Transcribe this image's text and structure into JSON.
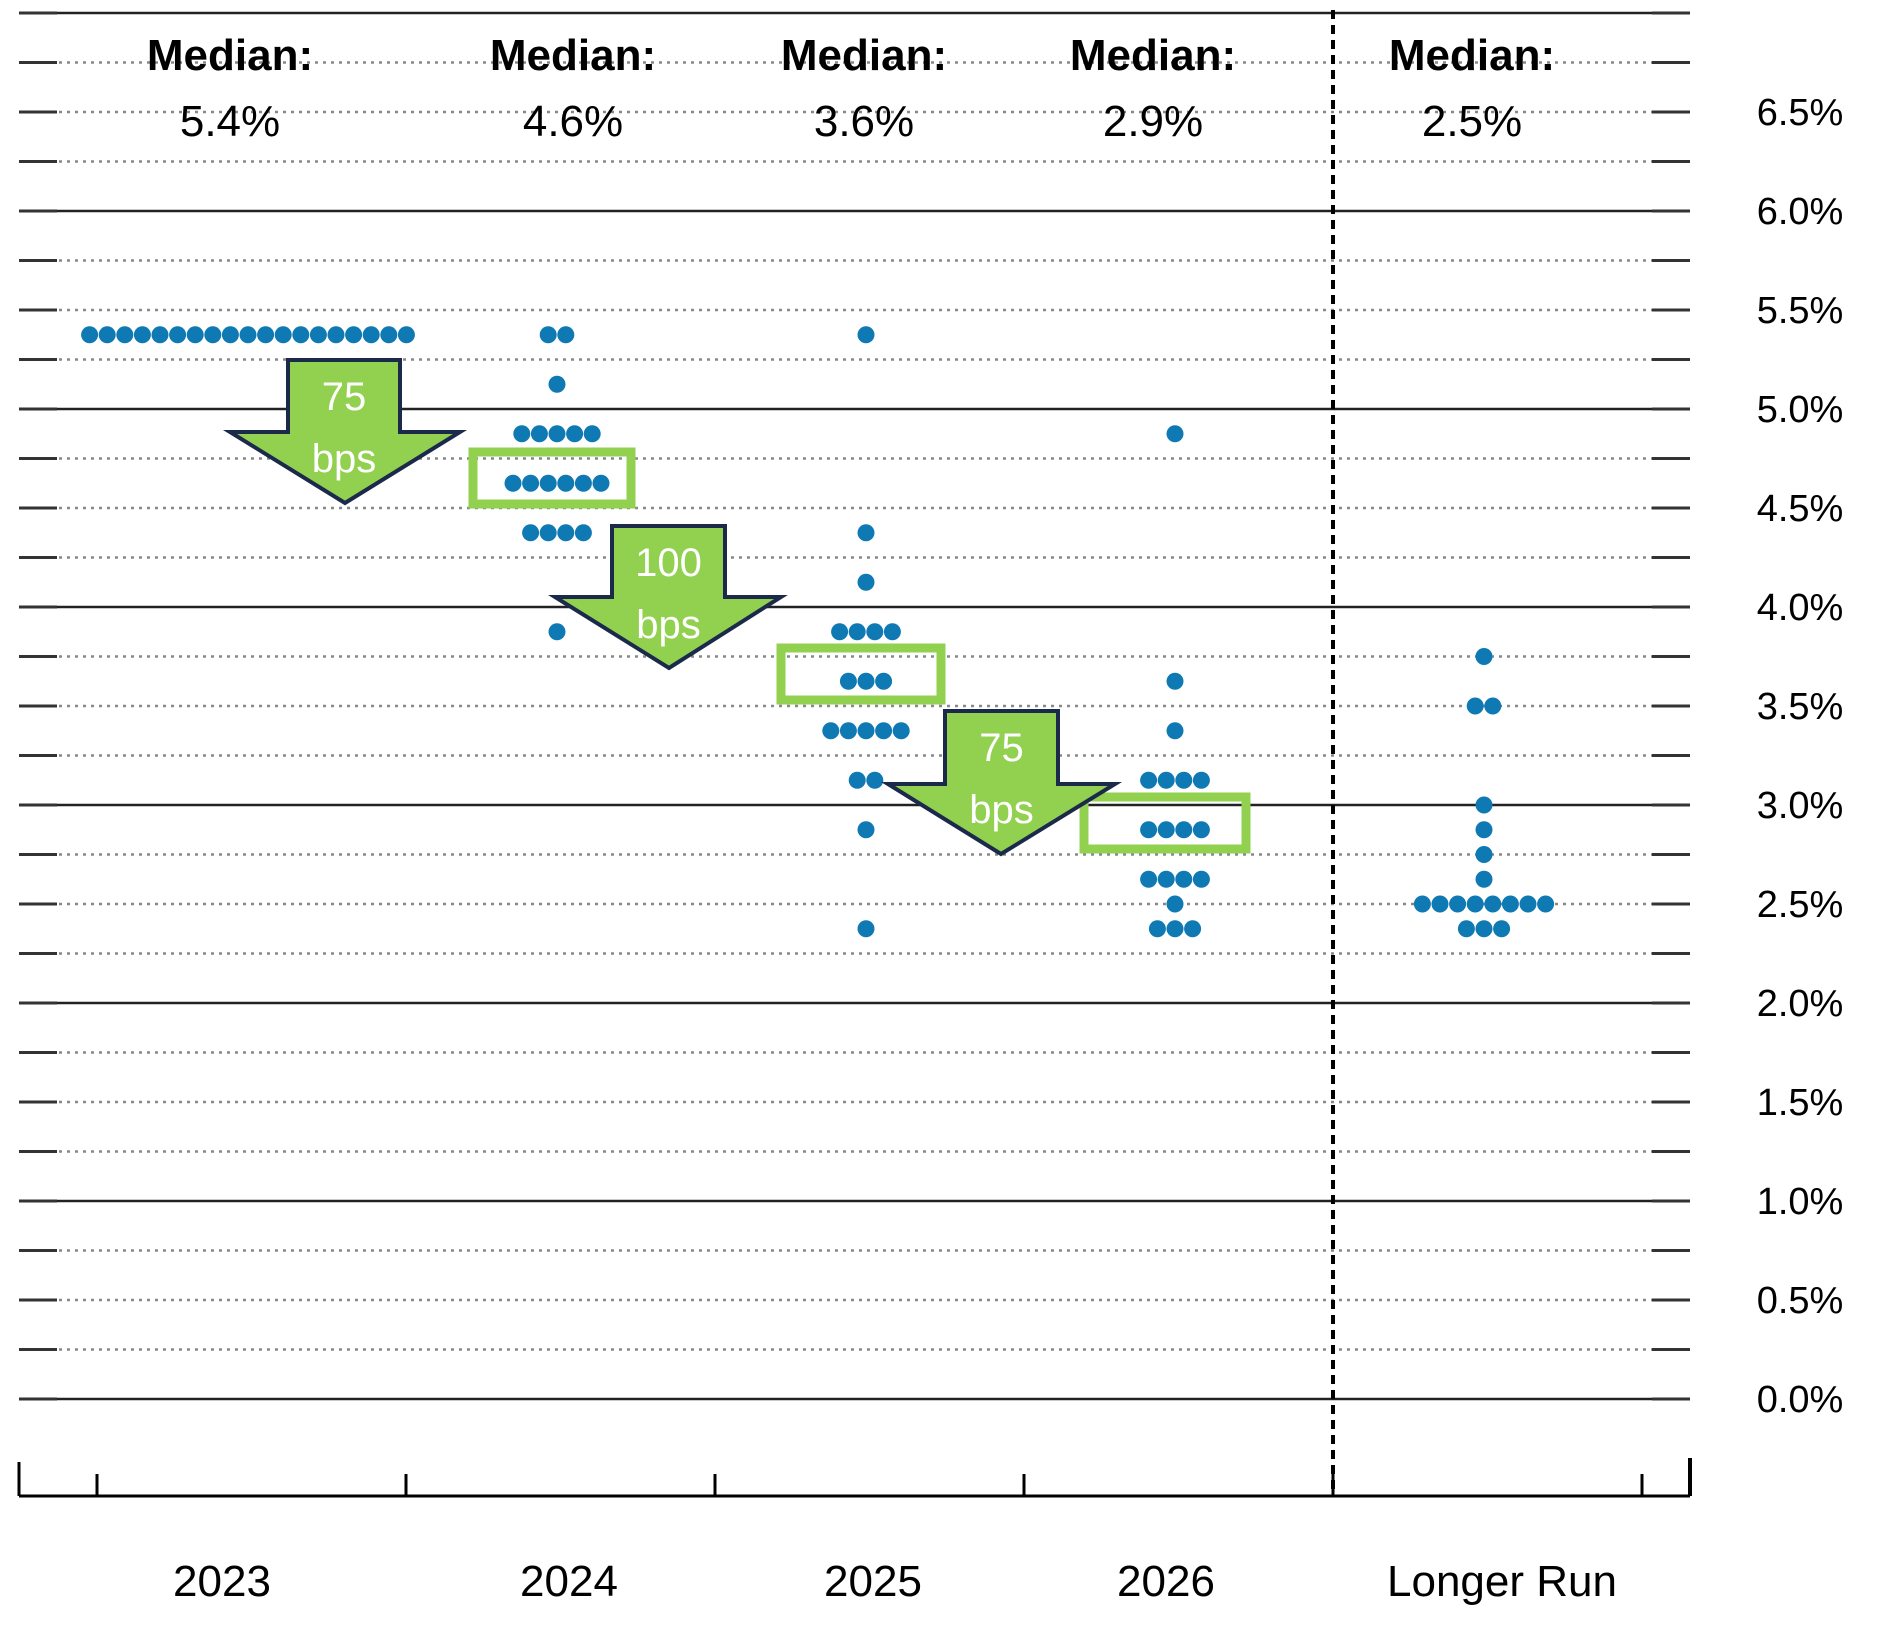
{
  "chart_data": {
    "type": "scatter",
    "subtype": "dot-plot",
    "categories": [
      "2023",
      "2024",
      "2025",
      "2026",
      "Longer Run"
    ],
    "ylim": [
      0,
      7.0
    ],
    "yticks": [
      "0.0%",
      "0.5%",
      "1.0%",
      "1.5%",
      "2.0%",
      "2.5%",
      "3.0%",
      "3.5%",
      "4.0%",
      "4.5%",
      "5.0%",
      "5.5%",
      "6.0%",
      "6.5%"
    ],
    "ytick_values": [
      0,
      0.5,
      1.0,
      1.5,
      2.0,
      2.5,
      3.0,
      3.5,
      4.0,
      4.5,
      5.0,
      5.5,
      6.0,
      6.5
    ],
    "grid": true,
    "median_heading": "Median:",
    "medians": [
      "5.4%",
      "4.6%",
      "3.6%",
      "2.9%",
      "2.5%"
    ],
    "median_values": [
      5.375,
      4.625,
      3.625,
      2.875,
      2.5
    ],
    "dots": [
      [
        {
          "y": 5.375,
          "count": 19
        }
      ],
      [
        {
          "y": 5.375,
          "count": 2
        },
        {
          "y": 5.125,
          "count": 1
        },
        {
          "y": 4.875,
          "count": 5
        },
        {
          "y": 4.625,
          "count": 6
        },
        {
          "y": 4.375,
          "count": 4
        },
        {
          "y": 3.875,
          "count": 1
        }
      ],
      [
        {
          "y": 5.375,
          "count": 1
        },
        {
          "y": 4.375,
          "count": 1
        },
        {
          "y": 4.125,
          "count": 1
        },
        {
          "y": 3.875,
          "count": 4
        },
        {
          "y": 3.625,
          "count": 3
        },
        {
          "y": 3.375,
          "count": 5
        },
        {
          "y": 3.125,
          "count": 2
        },
        {
          "y": 2.875,
          "count": 1
        },
        {
          "y": 2.375,
          "count": 1
        }
      ],
      [
        {
          "y": 4.875,
          "count": 1
        },
        {
          "y": 3.625,
          "count": 1
        },
        {
          "y": 3.375,
          "count": 1
        },
        {
          "y": 3.125,
          "count": 4
        },
        {
          "y": 2.875,
          "count": 4
        },
        {
          "y": 2.625,
          "count": 4
        },
        {
          "y": 2.5,
          "count": 1
        },
        {
          "y": 2.375,
          "count": 3
        }
      ],
      [
        {
          "y": 3.75,
          "count": 1
        },
        {
          "y": 3.5,
          "count": 2
        },
        {
          "y": 3.0,
          "count": 1
        },
        {
          "y": 2.875,
          "count": 1
        },
        {
          "y": 2.75,
          "count": 1
        },
        {
          "y": 2.625,
          "count": 1
        },
        {
          "y": 2.5,
          "count": 8
        },
        {
          "y": 2.375,
          "count": 3
        }
      ]
    ],
    "annotations": [
      {
        "line1": "75",
        "line2": "bps",
        "from": "2023",
        "to": "2024"
      },
      {
        "line1": "100",
        "line2": "bps",
        "from": "2024",
        "to": "2025"
      },
      {
        "line1": "75",
        "line2": "bps",
        "from": "2025",
        "to": "2026"
      }
    ],
    "highlighted_medians": [
      "2024",
      "2025",
      "2026"
    ],
    "colors": {
      "dot": "#0E79B2",
      "arrow_fill": "#92D050",
      "arrow_stroke": "#1B2A4A",
      "highlight_box": "#92D050"
    }
  }
}
